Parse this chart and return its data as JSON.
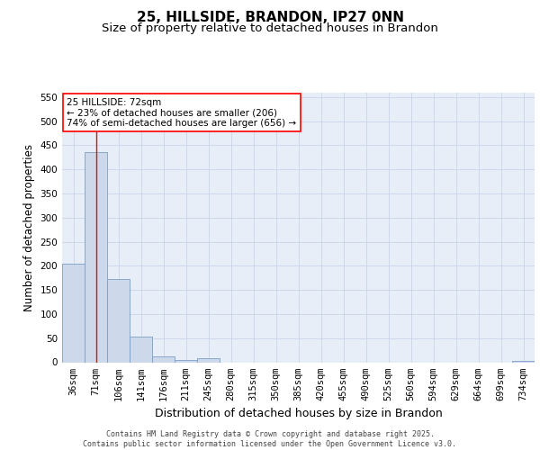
{
  "title": "25, HILLSIDE, BRANDON, IP27 0NN",
  "subtitle": "Size of property relative to detached houses in Brandon",
  "xlabel": "Distribution of detached houses by size in Brandon",
  "ylabel": "Number of detached properties",
  "categories": [
    "36sqm",
    "71sqm",
    "106sqm",
    "141sqm",
    "176sqm",
    "211sqm",
    "245sqm",
    "280sqm",
    "315sqm",
    "350sqm",
    "385sqm",
    "420sqm",
    "455sqm",
    "490sqm",
    "525sqm",
    "560sqm",
    "594sqm",
    "629sqm",
    "664sqm",
    "699sqm",
    "734sqm"
  ],
  "values": [
    205,
    435,
    172,
    54,
    12,
    5,
    9,
    0,
    0,
    0,
    0,
    0,
    0,
    0,
    0,
    0,
    0,
    0,
    0,
    0,
    3
  ],
  "bar_color": "#cdd9ea",
  "bar_edge_color": "#7a9ec8",
  "annotation_text_line1": "25 HILLSIDE: 72sqm",
  "annotation_text_line2": "← 23% of detached houses are smaller (206)",
  "annotation_text_line3": "74% of semi-detached houses are larger (656) →",
  "annotation_box_facecolor": "white",
  "annotation_box_edgecolor": "red",
  "vline_color": "red",
  "vline_x": 1.0,
  "ylim": [
    0,
    560
  ],
  "yticks": [
    0,
    50,
    100,
    150,
    200,
    250,
    300,
    350,
    400,
    450,
    500,
    550
  ],
  "title_fontsize": 11,
  "subtitle_fontsize": 9.5,
  "xlabel_fontsize": 9,
  "ylabel_fontsize": 8.5,
  "tick_fontsize": 7.5,
  "annotation_fontsize": 7.5,
  "footer_line1": "Contains HM Land Registry data © Crown copyright and database right 2025.",
  "footer_line2": "Contains public sector information licensed under the Open Government Licence v3.0.",
  "background_color": "#ffffff",
  "plot_bg_color": "#e8eef7",
  "grid_color": "#c8d4e8"
}
